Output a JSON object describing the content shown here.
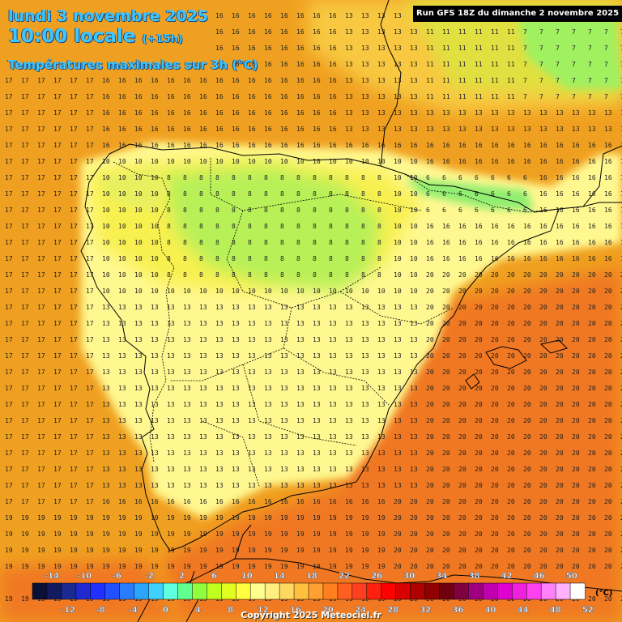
{
  "header": {
    "date": "lundi 3 novembre 2025",
    "time": "10:00 locale",
    "offset": "(+15h)",
    "parameter": "Températures maximales sur 3h (°C)"
  },
  "run_info": "Run GFS 18Z du dimanche 2 novembre 2025",
  "copyright": "Copyright 2025 Meteociel.fr",
  "legend": {
    "unit": "(°C)",
    "top_labels": [
      "-14",
      "-10",
      "-6",
      "-2",
      "2",
      "6",
      "10",
      "14",
      "18",
      "22",
      "26",
      "30",
      "34",
      "38",
      "42",
      "46",
      "50"
    ],
    "bottom_labels": [
      "-12",
      "-8",
      "-4",
      "0",
      "4",
      "8",
      "12",
      "16",
      "20",
      "24",
      "28",
      "32",
      "36",
      "40",
      "44",
      "48",
      "52"
    ],
    "colors": [
      "#0a1038",
      "#141a60",
      "#1a2a90",
      "#1e2ad0",
      "#2030ff",
      "#2050ff",
      "#2a7cff",
      "#2aa6ff",
      "#40d0ff",
      "#60ffe0",
      "#60ff90",
      "#90ff40",
      "#c0ff20",
      "#e0ff20",
      "#ffff40",
      "#ffff90",
      "#ffef80",
      "#ffd860",
      "#ffc040",
      "#ffa030",
      "#ff8020",
      "#ff6020",
      "#ff4020",
      "#ff2010",
      "#ff0000",
      "#d80000",
      "#b00000",
      "#900000",
      "#700010",
      "#800040",
      "#a00080",
      "#c000b0",
      "#e000d0",
      "#f020e0",
      "#ff40f0",
      "#ff80f8",
      "#ffb0ff",
      "#ffffff"
    ]
  },
  "map": {
    "region": "Iberian Peninsula",
    "land_color": "#fff8a0",
    "border_color": "#000000"
  }
}
